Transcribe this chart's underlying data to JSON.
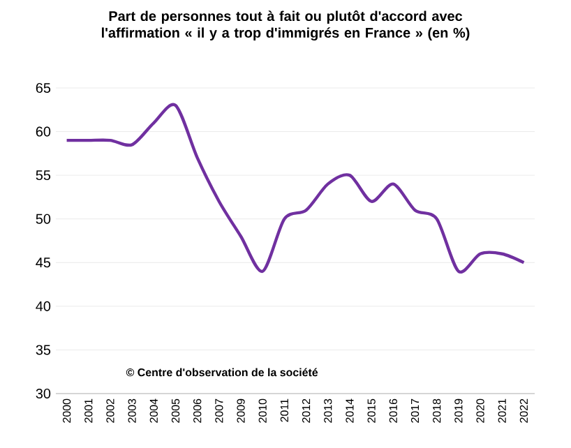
{
  "chart_data": {
    "type": "line",
    "title": "Part de personnes tout à fait ou plutôt d'accord avec l'affirmation « il y a trop d'immigrés en France » (en %)",
    "categories": [
      "2000",
      "2001",
      "2002",
      "2003",
      "2004",
      "2005",
      "2006",
      "2007",
      "2009",
      "2010",
      "2011",
      "2012",
      "2013",
      "2014",
      "2015",
      "2016",
      "2017",
      "2018",
      "2019",
      "2020",
      "2021",
      "2022"
    ],
    "series": [
      {
        "color": "#7030a0",
        "values": [
          59,
          59,
          59,
          58.5,
          61,
          63,
          57,
          52,
          48,
          44,
          50,
          51,
          54,
          55,
          52,
          54,
          51,
          50,
          44,
          46,
          46,
          45
        ]
      }
    ],
    "ylim": [
      30,
      65
    ],
    "yticks": [
      30,
      35,
      40,
      45,
      50,
      55,
      60,
      65
    ],
    "grid": "y",
    "annotations": [
      "© Centre d'observation de la société"
    ]
  }
}
